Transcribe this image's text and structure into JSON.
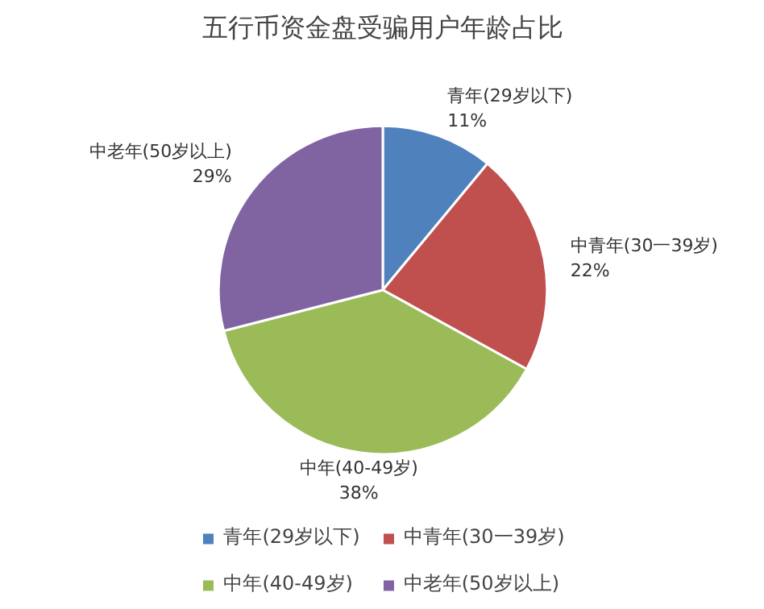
{
  "chart_data": {
    "type": "pie",
    "title": "五行币资金盘受骗用户年龄占比",
    "categories": [
      "青年(29岁以下)",
      "中青年(30一39岁)",
      "中年(40-49岁)",
      "中老年(50岁以上)"
    ],
    "values": [
      11,
      22,
      38,
      29
    ],
    "colors": [
      "#4f81bd",
      "#c0504d",
      "#9bbb59",
      "#8064a2"
    ],
    "value_labels": [
      "11%",
      "22%",
      "38%",
      "29%"
    ],
    "data_labels": true,
    "legend": "bottom"
  }
}
